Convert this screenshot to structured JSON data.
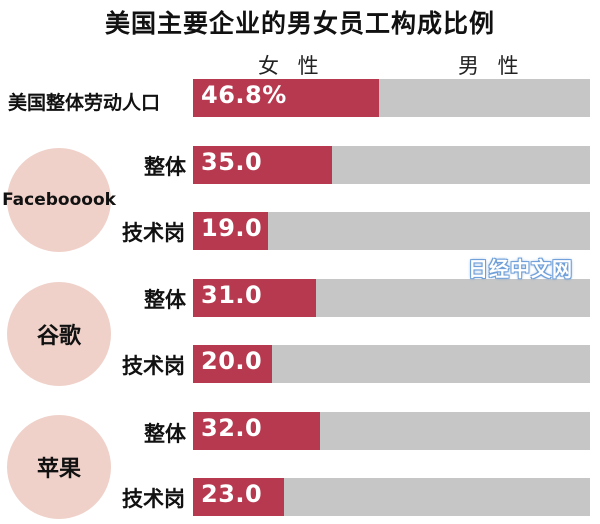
{
  "chart_data": {
    "type": "bar",
    "title": "美国主要企业的男女员工构成比例",
    "legend": [
      "女性",
      "男性"
    ],
    "categories": [
      "美国整体劳动人口",
      "Facebooook 整体",
      "Facebooook 技术岗",
      "谷歌 整体",
      "谷歌 技术岗",
      "苹果 整体",
      "苹果 技术岗"
    ],
    "series": [
      {
        "name": "女性",
        "values": [
          46.8,
          35.0,
          19.0,
          31.0,
          20.0,
          32.0,
          23.0
        ]
      },
      {
        "name": "男性",
        "values": [
          53.2,
          65.0,
          81.0,
          69.0,
          80.0,
          68.0,
          77.0
        ]
      }
    ],
    "stacked": true,
    "orientation": "horizontal",
    "xlim": [
      0,
      100
    ],
    "colors": {
      "female": "#b7394f",
      "male": "#c6c6c6",
      "company_circle": "#efd1c9"
    }
  },
  "title": "美国主要企业的男女员工构成比例",
  "legend": {
    "female": "女 性",
    "male": "男 性"
  },
  "rows": [
    {
      "label": "美国整体劳动人口",
      "value": 46.8,
      "value_label": "46.8%"
    },
    {
      "label": "整体",
      "value": 35.0,
      "value_label": "35.0"
    },
    {
      "label": "技术岗",
      "value": 19.0,
      "value_label": "19.0"
    },
    {
      "label": "整体",
      "value": 31.0,
      "value_label": "31.0"
    },
    {
      "label": "技术岗",
      "value": 20.0,
      "value_label": "20.0"
    },
    {
      "label": "整体",
      "value": 32.0,
      "value_label": "32.0"
    },
    {
      "label": "技术岗",
      "value": 23.0,
      "value_label": "23.0"
    }
  ],
  "companies": [
    {
      "name": "Facebooook"
    },
    {
      "name": "谷歌"
    },
    {
      "name": "苹果"
    }
  ],
  "watermark": "日经中文网"
}
